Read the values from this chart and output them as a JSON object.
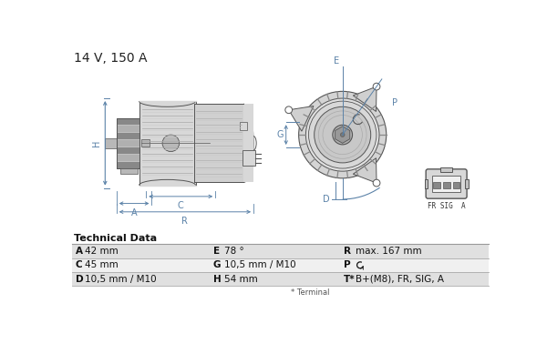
{
  "title": "14 V, 150 A",
  "title_fontsize": 10,
  "bg_color": "#ffffff",
  "dim_color": "#5b82a8",
  "line_color": "#555555",
  "body_light": "#d8d8d8",
  "body_mid": "#b8b8b8",
  "body_dark": "#888888",
  "table_title": "Technical Data",
  "table_row1_color": "#e0e0e0",
  "table_row2_color": "#f0f0f0",
  "table_data": [
    [
      "A",
      "42 mm",
      "E",
      "78 °",
      "R",
      "max. 167 mm"
    ],
    [
      "C",
      "45 mm",
      "G",
      "10,5 mm / M10",
      "P",
      "↻"
    ],
    [
      "D",
      "10,5 mm / M10",
      "H",
      "54 mm",
      "T*",
      "B+(M8), FR, SIG, A"
    ]
  ],
  "footnote": "* Terminal",
  "connector_label": "FR SIG  A"
}
